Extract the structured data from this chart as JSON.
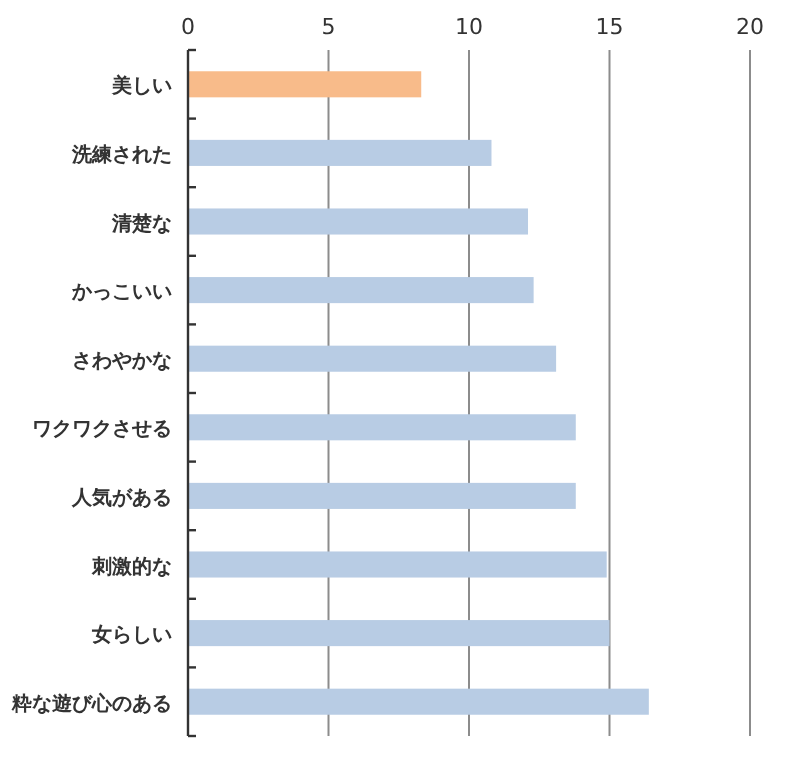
{
  "chart_data": {
    "type": "bar",
    "orientation": "horizontal",
    "categories": [
      "美しい",
      "洗練された",
      "清楚な",
      "かっこいい",
      "さわやかな",
      "ワクワクさせる",
      "人気がある",
      "刺激的な",
      "女らしい",
      "粋な遊び心のある"
    ],
    "values": [
      8.3,
      10.8,
      12.1,
      12.3,
      13.1,
      13.8,
      13.8,
      14.9,
      15.0,
      16.4
    ],
    "colors": [
      "#f8bb8a",
      "#b8cce4",
      "#b8cce4",
      "#b8cce4",
      "#b8cce4",
      "#b8cce4",
      "#b8cce4",
      "#b8cce4",
      "#b8cce4",
      "#b8cce4"
    ],
    "xlim": [
      0,
      20
    ],
    "xticks": [
      0,
      5,
      10,
      15,
      20
    ],
    "grid": "x"
  }
}
